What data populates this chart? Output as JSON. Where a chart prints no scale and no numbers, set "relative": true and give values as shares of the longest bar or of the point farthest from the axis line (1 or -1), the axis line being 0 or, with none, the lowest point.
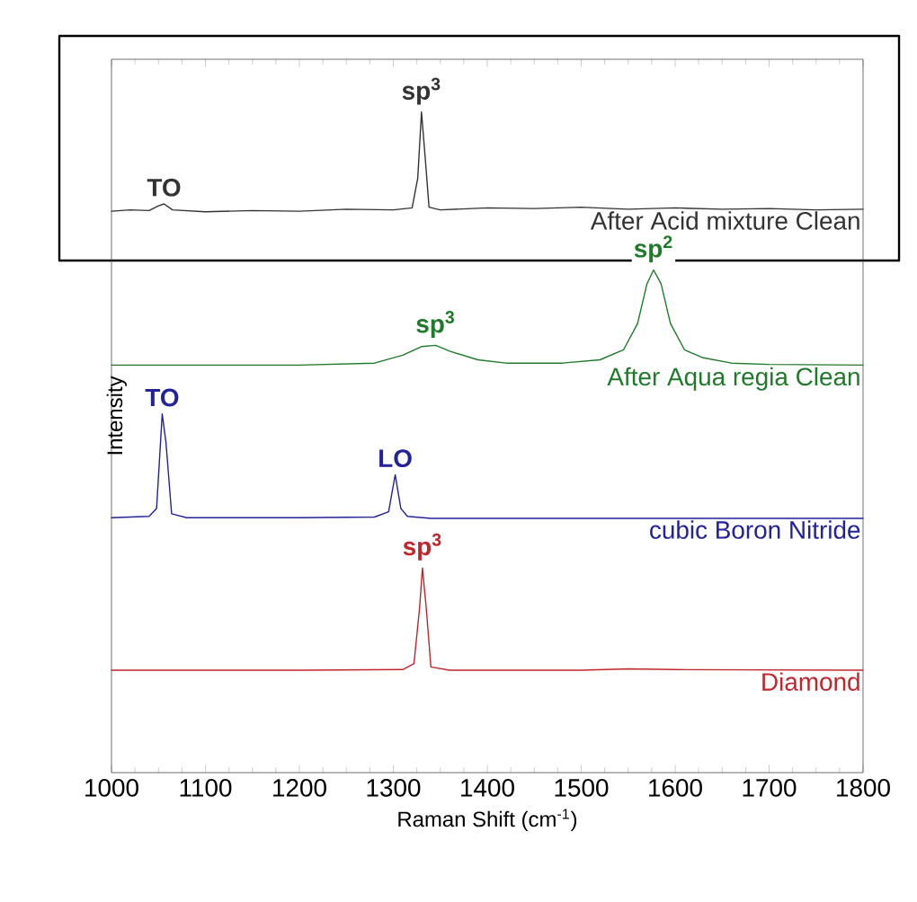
{
  "chart_data": {
    "type": "line",
    "relative": true,
    "xlabel": "Raman Shift (cm$^{-1}$)",
    "ylabel": "Intensity",
    "xlim": [
      1000,
      1800
    ],
    "xticks": [
      1000,
      1100,
      1200,
      1300,
      1400,
      1500,
      1600,
      1700,
      1800
    ],
    "legend": false,
    "grid": false,
    "marker": "none",
    "series": [
      {
        "name": "After Acid mixture Clean",
        "color": "#333333",
        "x": [
          1000,
          1020,
          1040,
          1050,
          1056,
          1065,
          1100,
          1150,
          1200,
          1250,
          1300,
          1320,
          1326,
          1330,
          1334,
          1338,
          1350,
          1400,
          1450,
          1500,
          1550,
          1600,
          1650,
          1700,
          1750,
          1800
        ],
        "values": [
          0.85,
          0.852,
          0.851,
          0.858,
          0.861,
          0.852,
          0.849,
          0.851,
          0.85,
          0.853,
          0.852,
          0.855,
          0.9,
          1.0,
          0.93,
          0.856,
          0.852,
          0.855,
          0.854,
          0.856,
          0.853,
          0.855,
          0.853,
          0.854,
          0.852,
          0.853
        ]
      },
      {
        "name": "After Aqua regia Clean",
        "color": "#1f7a2a",
        "x": [
          1000,
          1200,
          1280,
          1310,
          1330,
          1345,
          1360,
          1390,
          1420,
          1480,
          1520,
          1545,
          1560,
          1570,
          1577,
          1585,
          1595,
          1610,
          1630,
          1660,
          1700,
          1800
        ],
        "values": [
          0.617,
          0.617,
          0.62,
          0.632,
          0.645,
          0.647,
          0.638,
          0.625,
          0.62,
          0.62,
          0.625,
          0.64,
          0.68,
          0.74,
          0.761,
          0.74,
          0.68,
          0.64,
          0.628,
          0.62,
          0.618,
          0.617
        ]
      },
      {
        "name": "cubic Boron Nitride",
        "color": "#22229a",
        "x": [
          1000,
          1040,
          1048,
          1054,
          1058,
          1064,
          1080,
          1200,
          1280,
          1295,
          1302,
          1308,
          1315,
          1340,
          1800
        ],
        "values": [
          0.386,
          0.388,
          0.4,
          0.543,
          0.5,
          0.392,
          0.386,
          0.386,
          0.387,
          0.395,
          0.451,
          0.4,
          0.388,
          0.385,
          0.385
        ]
      },
      {
        "name": "Diamond",
        "color": "#c0262c",
        "x": [
          1000,
          1200,
          1310,
          1322,
          1328,
          1331,
          1335,
          1340,
          1360,
          1500,
          1550,
          1600,
          1800
        ],
        "values": [
          0.155,
          0.155,
          0.156,
          0.165,
          0.25,
          0.31,
          0.25,
          0.16,
          0.155,
          0.155,
          0.157,
          0.156,
          0.155
        ]
      }
    ],
    "annotations": [
      {
        "text": "TO",
        "x": 1056,
        "y": 0.861
      },
      {
        "text": "sp$^{3}$",
        "x": 1330,
        "y": 1.0
      },
      {
        "text": "sp$^{3}$",
        "x": 1345,
        "y": 0.647
      },
      {
        "text": "sp$^{2}$",
        "x": 1577,
        "y": 0.761
      },
      {
        "text": "TO",
        "x": 1054,
        "y": 0.543
      },
      {
        "text": "LO",
        "x": 1302,
        "y": 0.451
      },
      {
        "text": "sp$^{3}$",
        "x": 1331,
        "y": 0.31
      }
    ]
  }
}
